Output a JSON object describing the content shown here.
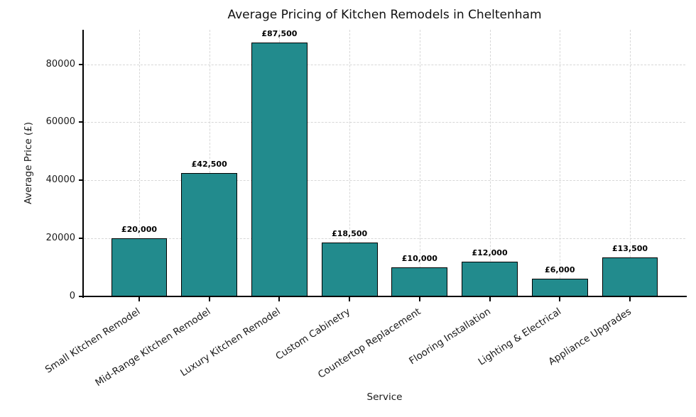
{
  "chart_data": {
    "type": "bar",
    "title": "Average Pricing of Kitchen Remodels in Cheltenham",
    "xlabel": "Service",
    "ylabel": "Average Price (£)",
    "categories": [
      "Small Kitchen Remodel",
      "Mid-Range Kitchen Remodel",
      "Luxury Kitchen Remodel",
      "Custom Cabinetry",
      "Countertop Replacement",
      "Flooring Installation",
      "Lighting & Electrical",
      "Appliance Upgrades"
    ],
    "values": [
      20000,
      42500,
      87500,
      18500,
      10000,
      12000,
      6000,
      13500
    ],
    "value_labels": [
      "£20,000",
      "£42,500",
      "£87,500",
      "£18,500",
      "£10,000",
      "£12,000",
      "£6,000",
      "£13,500"
    ],
    "yticks": [
      0,
      20000,
      40000,
      60000,
      80000
    ],
    "ytick_labels": [
      "0",
      "20000",
      "40000",
      "60000",
      "80000"
    ],
    "ylim": [
      0,
      91875
    ],
    "grid": true,
    "grid_style": "dashed",
    "grid_color": "#d7d7d7",
    "bar_color": "#228b8d",
    "bar_edge_color": "#000000",
    "legend": "none"
  }
}
